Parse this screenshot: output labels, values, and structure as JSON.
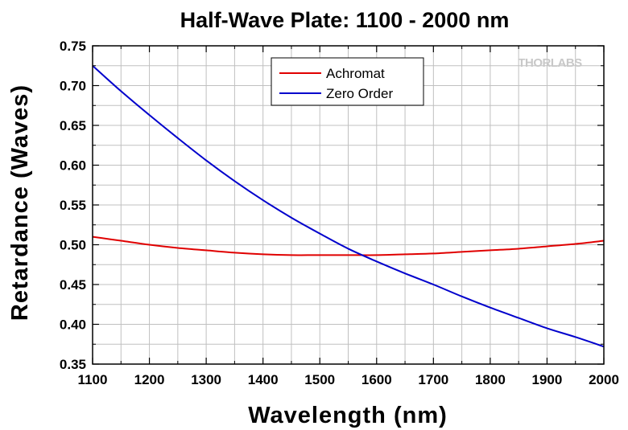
{
  "watermark": "THORLABS",
  "chart_data": {
    "type": "line",
    "title": "Half-Wave Plate: 1100 - 2000 nm",
    "xlabel": "Wavelength (nm)",
    "ylabel": "Retardance (Waves)",
    "xlim": [
      1100,
      2000
    ],
    "ylim": [
      0.35,
      0.75
    ],
    "xticks": [
      1100,
      1200,
      1300,
      1400,
      1500,
      1600,
      1700,
      1800,
      1900,
      2000
    ],
    "xtick_labels": [
      "1100",
      "1200",
      "1300",
      "1400",
      "1500",
      "1600",
      "1700",
      "1800",
      "1900",
      "2000"
    ],
    "yticks": [
      0.35,
      0.4,
      0.45,
      0.5,
      0.55,
      0.6,
      0.65,
      0.7,
      0.75
    ],
    "ytick_labels": [
      "0.35",
      "0.40",
      "0.45",
      "0.50",
      "0.55",
      "0.60",
      "0.65",
      "0.70",
      "0.75"
    ],
    "grid": true,
    "legend": "top-center",
    "x": [
      1100,
      1150,
      1200,
      1250,
      1300,
      1350,
      1400,
      1450,
      1500,
      1550,
      1600,
      1650,
      1700,
      1750,
      1800,
      1850,
      1900,
      1950,
      2000
    ],
    "series": [
      {
        "name": "Achromat",
        "color": "#e00000",
        "values": [
          0.51,
          0.505,
          0.5,
          0.496,
          0.493,
          0.49,
          0.488,
          0.487,
          0.487,
          0.487,
          0.487,
          0.488,
          0.489,
          0.491,
          0.493,
          0.495,
          0.498,
          0.501,
          0.505
        ]
      },
      {
        "name": "Zero Order",
        "color": "#0000cc",
        "values": [
          0.725,
          0.693,
          0.663,
          0.634,
          0.606,
          0.58,
          0.556,
          0.534,
          0.514,
          0.495,
          0.479,
          0.464,
          0.45,
          0.435,
          0.421,
          0.408,
          0.395,
          0.384,
          0.372
        ]
      }
    ]
  }
}
